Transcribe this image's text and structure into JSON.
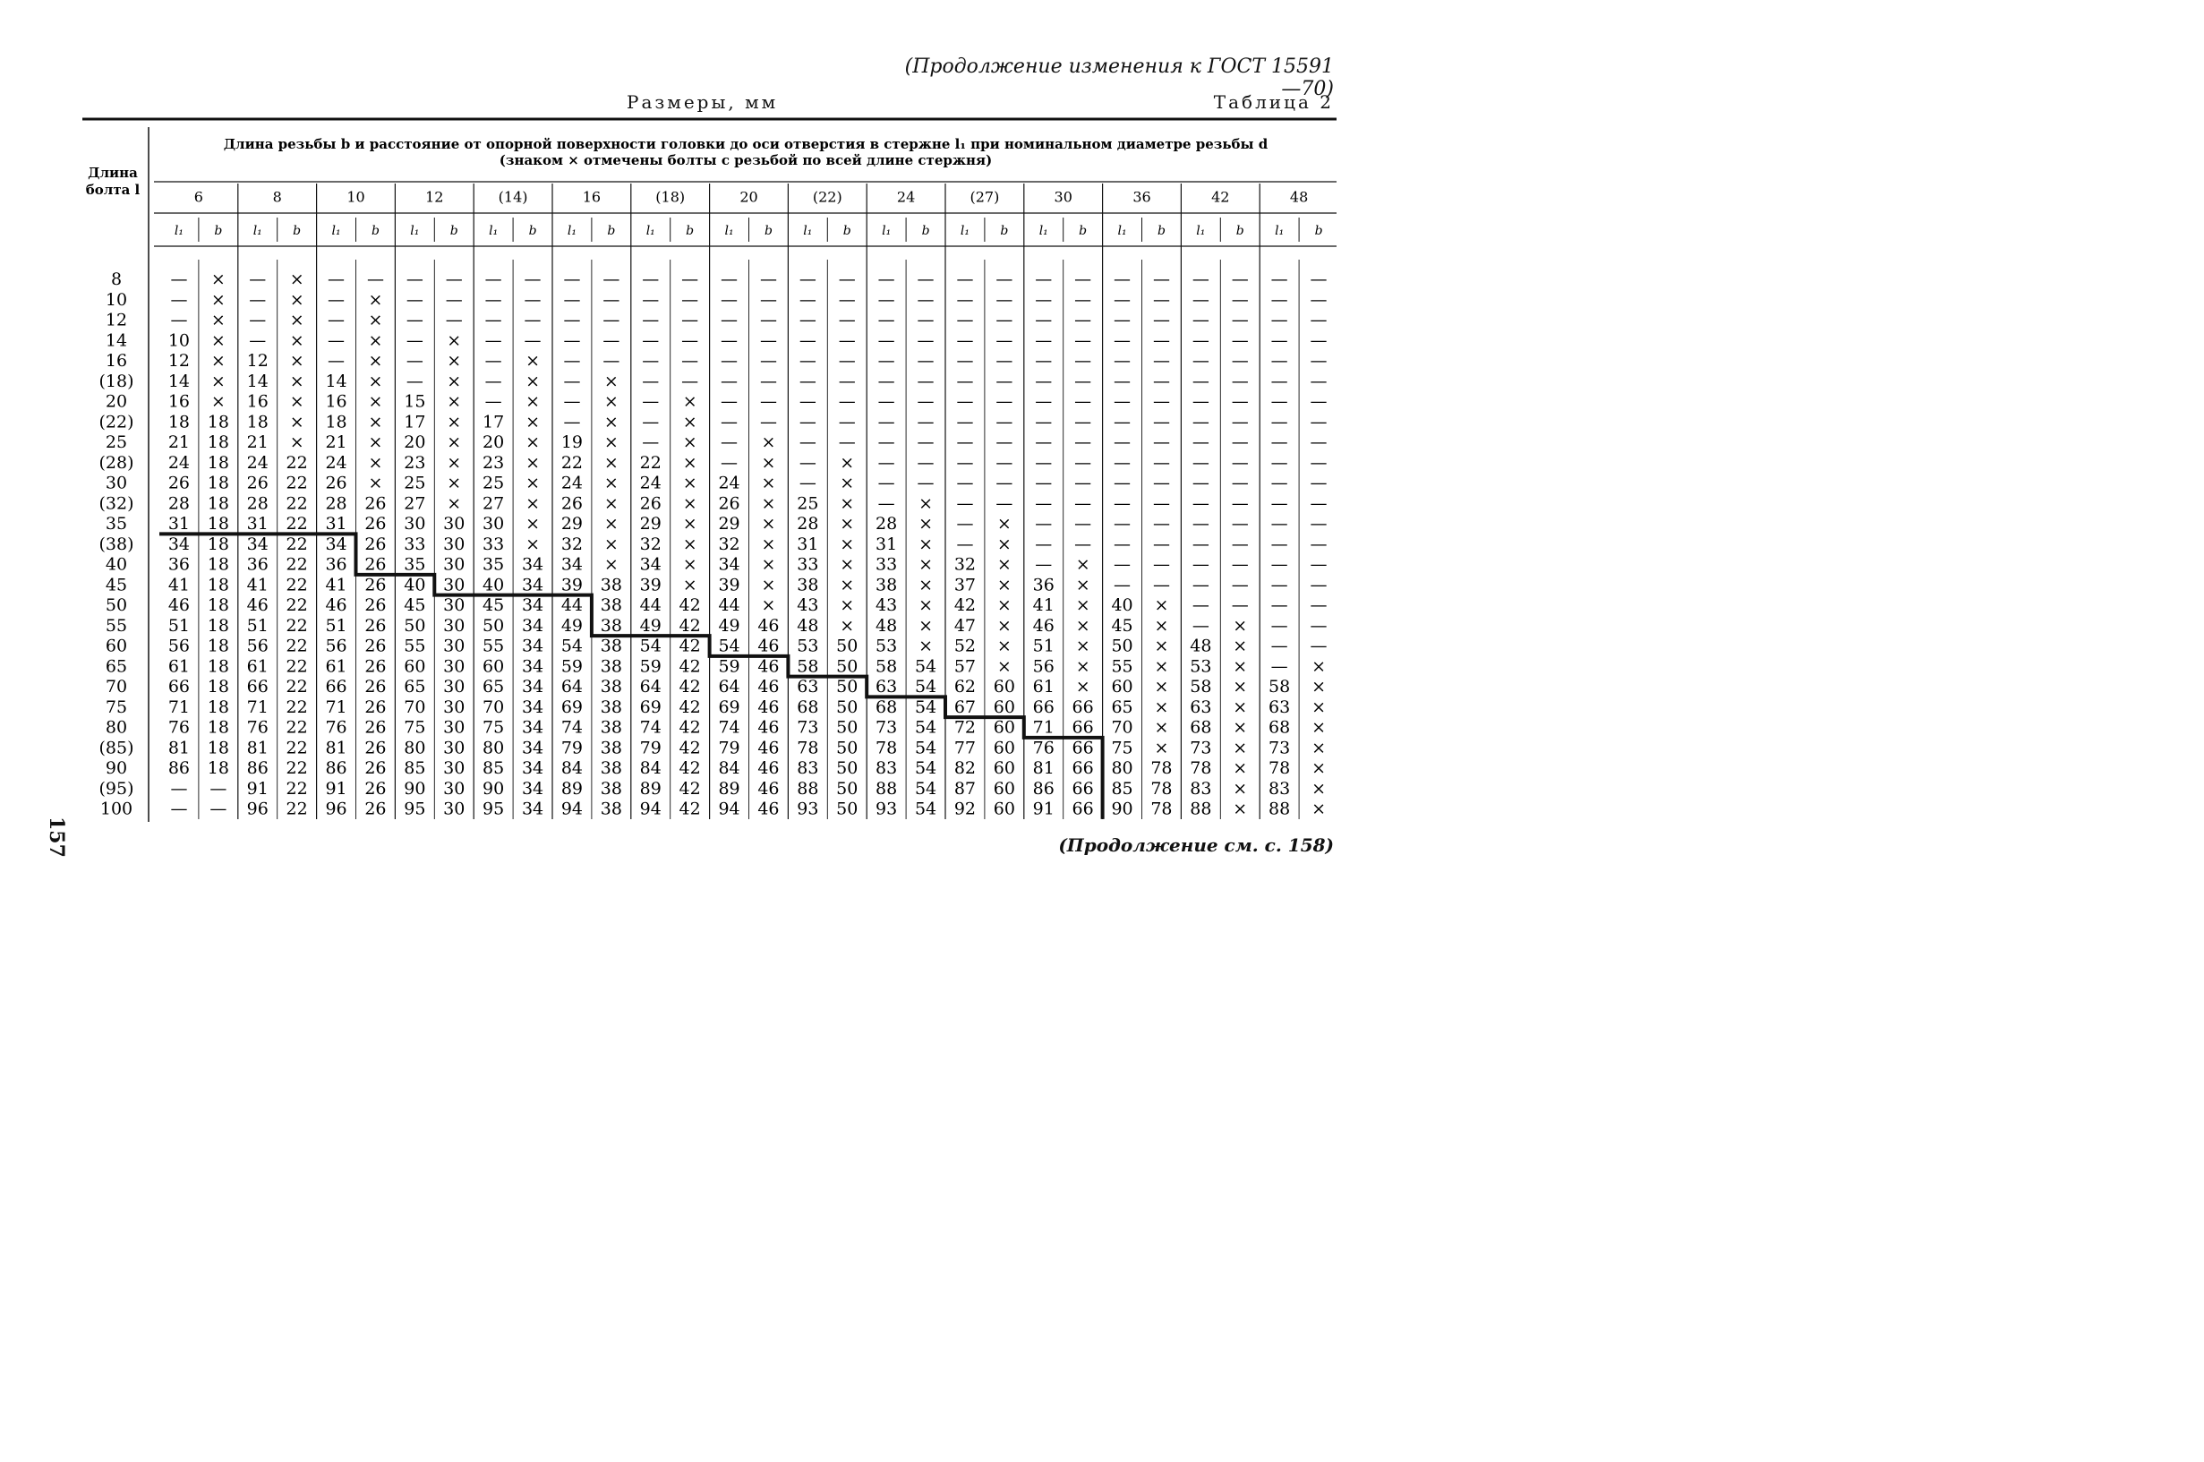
{
  "page": {
    "continuation_header": "(Продолжение изменения к ГОСТ 15591—70)",
    "dimensions_label": "Размеры, мм",
    "table_label": "Таблица 2",
    "page_number": "157",
    "footer_note": "(Продолжение см. с. 158)"
  },
  "table": {
    "row_header": [
      "Длина",
      "болта l"
    ],
    "title_line1": "Длина резьбы b и расстояние от опорной поверхности головки до оси отверстия в стержне l₁ при номинальном диаметре резьбы d",
    "title_line2": "(знаком × отмечены болты с резьбой по всей длине стержня)",
    "diameters": [
      "6",
      "8",
      "10",
      "12",
      "(14)",
      "16",
      "(18)",
      "20",
      "(22)",
      "24",
      "(27)",
      "30",
      "36",
      "42",
      "48"
    ],
    "sub_headers": [
      "l₁",
      "b"
    ],
    "lengths": [
      "8",
      "10",
      "12",
      "14",
      "16",
      "(18)",
      "20",
      "(22)",
      "25",
      "(28)",
      "30",
      "(32)",
      "35",
      "(38)",
      "40",
      "45",
      "50",
      "55",
      "60",
      "65",
      "70",
      "75",
      "80",
      "(85)",
      "90",
      "(95)",
      "100"
    ],
    "rows": [
      [
        "—",
        "×",
        "—",
        "×",
        "—",
        "—",
        "—",
        "—",
        "—",
        "—",
        "—",
        "—",
        "—",
        "—",
        "—",
        "—",
        "—",
        "—",
        "—",
        "—",
        "—",
        "—",
        "—",
        "—",
        "—",
        "—",
        "—",
        "—",
        "—",
        "—"
      ],
      [
        "—",
        "×",
        "—",
        "×",
        "—",
        "×",
        "—",
        "—",
        "—",
        "—",
        "—",
        "—",
        "—",
        "—",
        "—",
        "—",
        "—",
        "—",
        "—",
        "—",
        "—",
        "—",
        "—",
        "—",
        "—",
        "—",
        "—",
        "—",
        "—",
        "—"
      ],
      [
        "—",
        "×",
        "—",
        "×",
        "—",
        "×",
        "—",
        "—",
        "—",
        "—",
        "—",
        "—",
        "—",
        "—",
        "—",
        "—",
        "—",
        "—",
        "—",
        "—",
        "—",
        "—",
        "—",
        "—",
        "—",
        "—",
        "—",
        "—",
        "—",
        "—"
      ],
      [
        "10",
        "×",
        "—",
        "×",
        "—",
        "×",
        "—",
        "×",
        "—",
        "—",
        "—",
        "—",
        "—",
        "—",
        "—",
        "—",
        "—",
        "—",
        "—",
        "—",
        "—",
        "—",
        "—",
        "—",
        "—",
        "—",
        "—",
        "—",
        "—",
        "—"
      ],
      [
        "12",
        "×",
        "12",
        "×",
        "—",
        "×",
        "—",
        "×",
        "—",
        "×",
        "—",
        "—",
        "—",
        "—",
        "—",
        "—",
        "—",
        "—",
        "—",
        "—",
        "—",
        "—",
        "—",
        "—",
        "—",
        "—",
        "—",
        "—",
        "—",
        "—"
      ],
      [
        "14",
        "×",
        "14",
        "×",
        "14",
        "×",
        "—",
        "×",
        "—",
        "×",
        "—",
        "×",
        "—",
        "—",
        "—",
        "—",
        "—",
        "—",
        "—",
        "—",
        "—",
        "—",
        "—",
        "—",
        "—",
        "—",
        "—",
        "—",
        "—",
        "—"
      ],
      [
        "16",
        "×",
        "16",
        "×",
        "16",
        "×",
        "15",
        "×",
        "—",
        "×",
        "—",
        "×",
        "—",
        "×",
        "—",
        "—",
        "—",
        "—",
        "—",
        "—",
        "—",
        "—",
        "—",
        "—",
        "—",
        "—",
        "—",
        "—",
        "—",
        "—"
      ],
      [
        "18",
        "18",
        "18",
        "×",
        "18",
        "×",
        "17",
        "×",
        "17",
        "×",
        "—",
        "×",
        "—",
        "×",
        "—",
        "—",
        "—",
        "—",
        "—",
        "—",
        "—",
        "—",
        "—",
        "—",
        "—",
        "—",
        "—",
        "—",
        "—",
        "—"
      ],
      [
        "21",
        "18",
        "21",
        "×",
        "21",
        "×",
        "20",
        "×",
        "20",
        "×",
        "19",
        "×",
        "—",
        "×",
        "—",
        "×",
        "—",
        "—",
        "—",
        "—",
        "—",
        "—",
        "—",
        "—",
        "—",
        "—",
        "—",
        "—",
        "—",
        "—"
      ],
      [
        "24",
        "18",
        "24",
        "22",
        "24",
        "×",
        "23",
        "×",
        "23",
        "×",
        "22",
        "×",
        "22",
        "×",
        "—",
        "×",
        "—",
        "×",
        "—",
        "—",
        "—",
        "—",
        "—",
        "—",
        "—",
        "—",
        "—",
        "—",
        "—",
        "—"
      ],
      [
        "26",
        "18",
        "26",
        "22",
        "26",
        "×",
        "25",
        "×",
        "25",
        "×",
        "24",
        "×",
        "24",
        "×",
        "24",
        "×",
        "—",
        "×",
        "—",
        "—",
        "—",
        "—",
        "—",
        "—",
        "—",
        "—",
        "—",
        "—",
        "—",
        "—"
      ],
      [
        "28",
        "18",
        "28",
        "22",
        "28",
        "26",
        "27",
        "×",
        "27",
        "×",
        "26",
        "×",
        "26",
        "×",
        "26",
        "×",
        "25",
        "×",
        "—",
        "×",
        "—",
        "—",
        "—",
        "—",
        "—",
        "—",
        "—",
        "—",
        "—",
        "—"
      ],
      [
        "31",
        "18",
        "31",
        "22",
        "31",
        "26",
        "30",
        "30",
        "30",
        "×",
        "29",
        "×",
        "29",
        "×",
        "29",
        "×",
        "28",
        "×",
        "28",
        "×",
        "—",
        "×",
        "—",
        "—",
        "—",
        "—",
        "—",
        "—",
        "—",
        "—"
      ],
      [
        "34",
        "18",
        "34",
        "22",
        "34",
        "26",
        "33",
        "30",
        "33",
        "×",
        "32",
        "×",
        "32",
        "×",
        "32",
        "×",
        "31",
        "×",
        "31",
        "×",
        "—",
        "×",
        "—",
        "—",
        "—",
        "—",
        "—",
        "—",
        "—",
        "—"
      ],
      [
        "36",
        "18",
        "36",
        "22",
        "36",
        "26",
        "35",
        "30",
        "35",
        "34",
        "34",
        "×",
        "34",
        "×",
        "34",
        "×",
        "33",
        "×",
        "33",
        "×",
        "32",
        "×",
        "—",
        "×",
        "—",
        "—",
        "—",
        "—",
        "—",
        "—"
      ],
      [
        "41",
        "18",
        "41",
        "22",
        "41",
        "26",
        "40",
        "30",
        "40",
        "34",
        "39",
        "38",
        "39",
        "×",
        "39",
        "×",
        "38",
        "×",
        "38",
        "×",
        "37",
        "×",
        "36",
        "×",
        "—",
        "—",
        "—",
        "—",
        "—",
        "—"
      ],
      [
        "46",
        "18",
        "46",
        "22",
        "46",
        "26",
        "45",
        "30",
        "45",
        "34",
        "44",
        "38",
        "44",
        "42",
        "44",
        "×",
        "43",
        "×",
        "43",
        "×",
        "42",
        "×",
        "41",
        "×",
        "40",
        "×",
        "—",
        "—",
        "—",
        "—"
      ],
      [
        "51",
        "18",
        "51",
        "22",
        "51",
        "26",
        "50",
        "30",
        "50",
        "34",
        "49",
        "38",
        "49",
        "42",
        "49",
        "46",
        "48",
        "×",
        "48",
        "×",
        "47",
        "×",
        "46",
        "×",
        "45",
        "×",
        "—",
        "×",
        "—",
        "—"
      ],
      [
        "56",
        "18",
        "56",
        "22",
        "56",
        "26",
        "55",
        "30",
        "55",
        "34",
        "54",
        "38",
        "54",
        "42",
        "54",
        "46",
        "53",
        "50",
        "53",
        "×",
        "52",
        "×",
        "51",
        "×",
        "50",
        "×",
        "48",
        "×",
        "—",
        "—"
      ],
      [
        "61",
        "18",
        "61",
        "22",
        "61",
        "26",
        "60",
        "30",
        "60",
        "34",
        "59",
        "38",
        "59",
        "42",
        "59",
        "46",
        "58",
        "50",
        "58",
        "54",
        "57",
        "×",
        "56",
        "×",
        "55",
        "×",
        "53",
        "×",
        "—",
        "×"
      ],
      [
        "66",
        "18",
        "66",
        "22",
        "66",
        "26",
        "65",
        "30",
        "65",
        "34",
        "64",
        "38",
        "64",
        "42",
        "64",
        "46",
        "63",
        "50",
        "63",
        "54",
        "62",
        "60",
        "61",
        "×",
        "60",
        "×",
        "58",
        "×",
        "58",
        "×"
      ],
      [
        "71",
        "18",
        "71",
        "22",
        "71",
        "26",
        "70",
        "30",
        "70",
        "34",
        "69",
        "38",
        "69",
        "42",
        "69",
        "46",
        "68",
        "50",
        "68",
        "54",
        "67",
        "60",
        "66",
        "66",
        "65",
        "×",
        "63",
        "×",
        "63",
        "×"
      ],
      [
        "76",
        "18",
        "76",
        "22",
        "76",
        "26",
        "75",
        "30",
        "75",
        "34",
        "74",
        "38",
        "74",
        "42",
        "74",
        "46",
        "73",
        "50",
        "73",
        "54",
        "72",
        "60",
        "71",
        "66",
        "70",
        "×",
        "68",
        "×",
        "68",
        "×"
      ],
      [
        "81",
        "18",
        "81",
        "22",
        "81",
        "26",
        "80",
        "30",
        "80",
        "34",
        "79",
        "38",
        "79",
        "42",
        "79",
        "46",
        "78",
        "50",
        "78",
        "54",
        "77",
        "60",
        "76",
        "66",
        "75",
        "×",
        "73",
        "×",
        "73",
        "×"
      ],
      [
        "86",
        "18",
        "86",
        "22",
        "86",
        "26",
        "85",
        "30",
        "85",
        "34",
        "84",
        "38",
        "84",
        "42",
        "84",
        "46",
        "83",
        "50",
        "83",
        "54",
        "82",
        "60",
        "81",
        "66",
        "80",
        "78",
        "78",
        "×",
        "78",
        "×"
      ],
      [
        "—",
        "—",
        "91",
        "22",
        "91",
        "26",
        "90",
        "30",
        "90",
        "34",
        "89",
        "38",
        "89",
        "42",
        "89",
        "46",
        "88",
        "50",
        "88",
        "54",
        "87",
        "60",
        "86",
        "66",
        "85",
        "78",
        "83",
        "×",
        "83",
        "×"
      ],
      [
        "—",
        "—",
        "96",
        "22",
        "96",
        "26",
        "95",
        "30",
        "95",
        "34",
        "94",
        "38",
        "94",
        "42",
        "94",
        "46",
        "93",
        "50",
        "93",
        "54",
        "92",
        "60",
        "91",
        "66",
        "90",
        "78",
        "88",
        "×",
        "88",
        "×"
      ]
    ]
  }
}
